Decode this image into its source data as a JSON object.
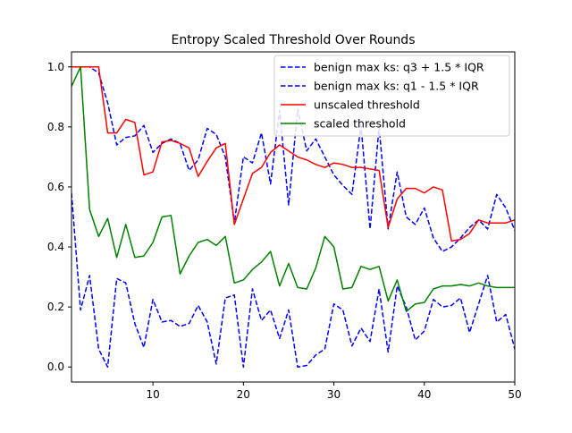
{
  "chart_data": {
    "type": "line",
    "title": "Entropy Scaled Threshold Over Rounds",
    "xlabel": "",
    "ylabel": "",
    "xlim": [
      1,
      50
    ],
    "ylim": [
      -0.05,
      1.05
    ],
    "xticks": [
      10,
      20,
      30,
      40,
      50
    ],
    "yticks": [
      0.0,
      0.2,
      0.4,
      0.6,
      0.8,
      1.0
    ],
    "xtick_labels": [
      "10",
      "20",
      "30",
      "40",
      "50"
    ],
    "ytick_labels": [
      "0.0",
      "0.2",
      "0.4",
      "0.6",
      "0.8",
      "1.0"
    ],
    "grid": false,
    "legend_position": "top-right",
    "x": [
      1,
      2,
      3,
      4,
      5,
      6,
      7,
      8,
      9,
      10,
      11,
      12,
      13,
      14,
      15,
      16,
      17,
      18,
      19,
      20,
      21,
      22,
      23,
      24,
      25,
      26,
      27,
      28,
      29,
      30,
      31,
      32,
      33,
      34,
      35,
      36,
      37,
      38,
      39,
      40,
      41,
      42,
      43,
      44,
      45,
      46,
      47,
      48,
      49,
      50
    ],
    "series": [
      {
        "name": "benign max ks: q3 + 1.5 * IQR",
        "color": "#0000ff",
        "style": "dashed",
        "values": [
          1.0,
          1.0,
          1.0,
          0.98,
          0.88,
          0.74,
          0.765,
          0.77,
          0.805,
          0.715,
          0.745,
          0.76,
          0.745,
          0.655,
          0.69,
          0.795,
          0.775,
          0.7,
          0.48,
          0.7,
          0.68,
          0.78,
          0.61,
          0.855,
          0.54,
          0.86,
          0.72,
          0.76,
          0.7,
          0.64,
          0.605,
          0.575,
          0.805,
          0.46,
          0.8,
          0.46,
          0.65,
          0.5,
          0.475,
          0.53,
          0.43,
          0.385,
          0.4,
          0.43,
          0.465,
          0.49,
          0.46,
          0.575,
          0.53,
          0.455
        ]
      },
      {
        "name": "benign max ks: q1 - 1.5 * IQR",
        "color": "#0000ff",
        "style": "dashed",
        "values": [
          0.58,
          0.19,
          0.305,
          0.06,
          0.0,
          0.295,
          0.28,
          0.145,
          0.065,
          0.225,
          0.15,
          0.155,
          0.135,
          0.145,
          0.205,
          0.15,
          0.01,
          0.23,
          0.24,
          0.0,
          0.26,
          0.155,
          0.19,
          0.095,
          0.19,
          0.0,
          0.005,
          0.04,
          0.06,
          0.21,
          0.19,
          0.07,
          0.13,
          0.085,
          0.26,
          0.05,
          0.27,
          0.2,
          0.09,
          0.12,
          0.225,
          0.2,
          0.205,
          0.23,
          0.115,
          0.21,
          0.305,
          0.15,
          0.175,
          0.06
        ]
      },
      {
        "name": "unscaled threshold",
        "color": "#ff0000",
        "style": "solid",
        "values": [
          1.0,
          1.0,
          1.0,
          1.0,
          0.78,
          0.78,
          0.825,
          0.815,
          0.64,
          0.65,
          0.75,
          0.755,
          0.745,
          0.73,
          0.635,
          0.685,
          0.73,
          0.745,
          0.475,
          0.56,
          0.645,
          0.665,
          0.715,
          0.74,
          0.72,
          0.7,
          0.69,
          0.675,
          0.665,
          0.68,
          0.675,
          0.665,
          0.665,
          0.66,
          0.655,
          0.465,
          0.56,
          0.595,
          0.595,
          0.58,
          0.6,
          0.59,
          0.42,
          0.425,
          0.445,
          0.49,
          0.48,
          0.48,
          0.48,
          0.49
        ]
      },
      {
        "name": "scaled threshold",
        "color": "#008000",
        "style": "solid",
        "values": [
          0.935,
          1.0,
          0.525,
          0.435,
          0.495,
          0.365,
          0.475,
          0.365,
          0.37,
          0.415,
          0.5,
          0.505,
          0.31,
          0.37,
          0.415,
          0.425,
          0.405,
          0.435,
          0.28,
          0.29,
          0.325,
          0.35,
          0.385,
          0.27,
          0.345,
          0.265,
          0.26,
          0.33,
          0.435,
          0.4,
          0.26,
          0.265,
          0.335,
          0.325,
          0.335,
          0.22,
          0.29,
          0.185,
          0.21,
          0.215,
          0.26,
          0.27,
          0.27,
          0.275,
          0.27,
          0.28,
          0.27,
          0.265,
          0.265,
          0.265
        ]
      }
    ]
  }
}
